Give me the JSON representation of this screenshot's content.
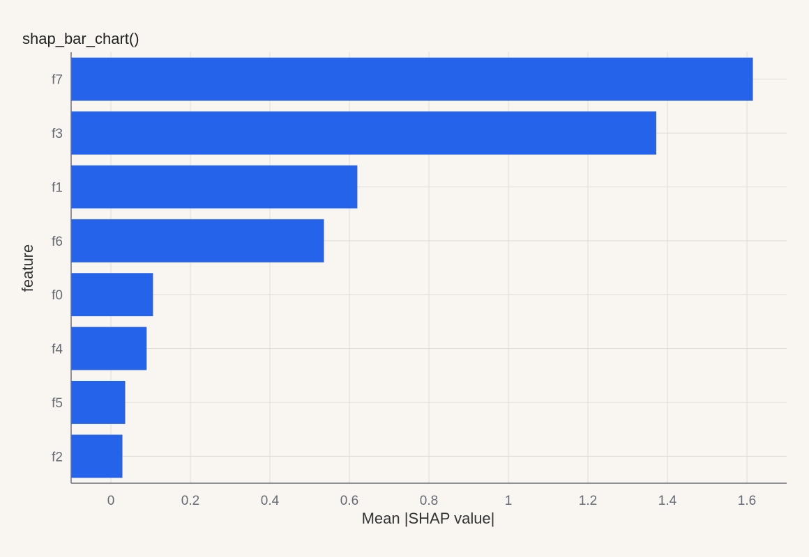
{
  "chart_data": {
    "type": "bar",
    "orientation": "horizontal",
    "title": "shap_bar_chart()",
    "xlabel": "Mean |SHAP value|",
    "ylabel": "feature",
    "categories": [
      "f7",
      "f3",
      "f1",
      "f6",
      "f0",
      "f4",
      "f5",
      "f2"
    ],
    "values": [
      1.615,
      1.372,
      0.62,
      0.536,
      0.106,
      0.09,
      0.036,
      0.029
    ],
    "xlim": [
      -0.1,
      1.7
    ],
    "xticks": [
      0,
      0.2,
      0.4,
      0.6,
      0.8,
      1,
      1.2,
      1.4,
      1.6
    ],
    "xtick_labels": [
      "0",
      "0.2",
      "0.4",
      "0.6",
      "0.8",
      "1",
      "1.2",
      "1.4",
      "1.6"
    ],
    "grid": true,
    "colors": {
      "bar": "#2563eb",
      "background": "#f9f6f2",
      "grid": "#dedad6"
    }
  }
}
